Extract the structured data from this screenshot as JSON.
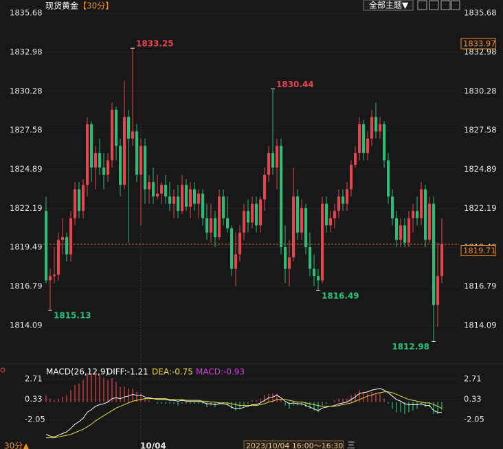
{
  "chart_data": {
    "type": "candlestick",
    "title": "现货黄金",
    "period": "【30分】",
    "theme_button": "全部主题▼",
    "up_color": "#e8434e",
    "down_color": "#25c07a",
    "ylim": [
      1811.67,
      1835.68
    ],
    "yticks": [
      1835.68,
      1832.98,
      1830.28,
      1827.58,
      1824.89,
      1822.19,
      1819.49,
      1816.79,
      1814.09
    ],
    "candles": [
      [
        1822,
        1823,
        1817,
        1817.2
      ],
      [
        1817.2,
        1818,
        1815.13,
        1817.5
      ],
      [
        1817.5,
        1819.5,
        1817,
        1817.6
      ],
      [
        1817.6,
        1820.5,
        1817.2,
        1820
      ],
      [
        1820,
        1821.5,
        1819,
        1820.2
      ],
      [
        1820.2,
        1820.5,
        1818.5,
        1819
      ],
      [
        1819,
        1822,
        1818.5,
        1821.5
      ],
      [
        1821.5,
        1824,
        1821,
        1823.5
      ],
      [
        1823.5,
        1824,
        1821.5,
        1822
      ],
      [
        1822,
        1824.2,
        1821.5,
        1823.8
      ],
      [
        1823.8,
        1828.5,
        1823,
        1828
      ],
      [
        1828,
        1828.2,
        1824,
        1825
      ],
      [
        1825,
        1826.5,
        1823.5,
        1826
      ],
      [
        1826,
        1827,
        1824.5,
        1825
      ],
      [
        1825,
        1826,
        1823.5,
        1824.5
      ],
      [
        1824.5,
        1826,
        1824,
        1825.5
      ],
      [
        1825.5,
        1829.5,
        1825,
        1829
      ],
      [
        1829,
        1829.2,
        1825.5,
        1826.5
      ],
      [
        1826.5,
        1827,
        1823,
        1823.8
      ],
      [
        1823.8,
        1831,
        1823.5,
        1828.5
      ],
      [
        1828.5,
        1829,
        1819.8,
        1827
      ],
      [
        1827,
        1833.25,
        1826.5,
        1827.5
      ],
      [
        1827.5,
        1828,
        1824,
        1824.5
      ],
      [
        1824.5,
        1827,
        1821,
        1826.5
      ],
      [
        1826.5,
        1827,
        1822.5,
        1823.5
      ],
      [
        1823.5,
        1824.5,
        1822.5,
        1824
      ],
      [
        1824,
        1825,
        1822.5,
        1823
      ],
      [
        1823,
        1824.5,
        1822.8,
        1823.2
      ],
      [
        1823.2,
        1824,
        1822.5,
        1823.8
      ],
      [
        1823.8,
        1824.5,
        1822.5,
        1823
      ],
      [
        1823,
        1824,
        1822,
        1822.5
      ],
      [
        1822.5,
        1823.5,
        1821.5,
        1823
      ],
      [
        1823,
        1823.8,
        1821.5,
        1822
      ],
      [
        1822,
        1824.5,
        1821.8,
        1823.8
      ],
      [
        1823.8,
        1824.2,
        1822,
        1822.3
      ],
      [
        1822.3,
        1824,
        1821.5,
        1823.5
      ],
      [
        1823.5,
        1824,
        1822,
        1822.5
      ],
      [
        1822.5,
        1823.5,
        1821.5,
        1823.2
      ],
      [
        1823.2,
        1823.5,
        1821,
        1821.5
      ],
      [
        1821.5,
        1822.5,
        1820,
        1820.5
      ],
      [
        1820.5,
        1822.5,
        1819.8,
        1821.5
      ],
      [
        1821.5,
        1822,
        1819.5,
        1820.2
      ],
      [
        1820.2,
        1823.5,
        1820,
        1823
      ],
      [
        1823,
        1823.5,
        1821,
        1821.5
      ],
      [
        1821.5,
        1823,
        1820.5,
        1820.8
      ],
      [
        1820.8,
        1821,
        1817.5,
        1818
      ],
      [
        1818,
        1820.5,
        1816.8,
        1819
      ],
      [
        1819,
        1821,
        1818.5,
        1820.5
      ],
      [
        1820.5,
        1822.5,
        1820,
        1822
      ],
      [
        1822,
        1822.8,
        1820.5,
        1821.2
      ],
      [
        1821.2,
        1823,
        1820.8,
        1822.5
      ],
      [
        1822.5,
        1823,
        1820.5,
        1821
      ],
      [
        1821,
        1823,
        1820.5,
        1822.8
      ],
      [
        1822.8,
        1825,
        1822,
        1824.5
      ],
      [
        1824.5,
        1826.5,
        1824,
        1826
      ],
      [
        1826,
        1830.44,
        1824.5,
        1825
      ],
      [
        1825,
        1827,
        1823.5,
        1826.5
      ],
      [
        1826.5,
        1827,
        1819,
        1819.5
      ],
      [
        1819.5,
        1821,
        1817,
        1818
      ],
      [
        1818,
        1820,
        1816.8,
        1818.8
      ],
      [
        1818.8,
        1825,
        1818.5,
        1823
      ],
      [
        1823,
        1823.5,
        1820,
        1820.5
      ],
      [
        1820.5,
        1822.8,
        1820,
        1822.2
      ],
      [
        1822.2,
        1822.5,
        1819,
        1819.5
      ],
      [
        1819.5,
        1820.5,
        1817.5,
        1818
      ],
      [
        1818,
        1819,
        1816.8,
        1817.5
      ],
      [
        1817.5,
        1818,
        1816.49,
        1817.2
      ],
      [
        1817.2,
        1823,
        1817,
        1822.5
      ],
      [
        1822.5,
        1823,
        1820.5,
        1821
      ],
      [
        1821,
        1822,
        1820.5,
        1821.5
      ],
      [
        1821.5,
        1822.5,
        1820.8,
        1822
      ],
      [
        1822,
        1823.5,
        1821.5,
        1823
      ],
      [
        1823,
        1823.5,
        1822,
        1822.5
      ],
      [
        1822.5,
        1824,
        1822,
        1823.5
      ],
      [
        1823.5,
        1825.5,
        1823,
        1825.2
      ],
      [
        1825.2,
        1826.5,
        1825,
        1826
      ],
      [
        1826,
        1828.5,
        1825.5,
        1828
      ],
      [
        1828,
        1828.3,
        1825.5,
        1826
      ],
      [
        1826,
        1827.5,
        1825.5,
        1827
      ],
      [
        1827,
        1829,
        1826.5,
        1828.5
      ],
      [
        1828.5,
        1829.5,
        1827,
        1827.5
      ],
      [
        1827.5,
        1828.5,
        1827,
        1828
      ],
      [
        1828,
        1828.2,
        1825,
        1825.5
      ],
      [
        1825.5,
        1826,
        1822.5,
        1823
      ],
      [
        1823,
        1823.5,
        1821,
        1821.5
      ],
      [
        1821.5,
        1822,
        1819.5,
        1820
      ],
      [
        1820,
        1821.5,
        1819.5,
        1821
      ],
      [
        1821,
        1821.5,
        1819.5,
        1819.8
      ],
      [
        1819.8,
        1822,
        1819.5,
        1821.5
      ],
      [
        1821.5,
        1822.5,
        1820.5,
        1822
      ],
      [
        1822,
        1823,
        1821,
        1821.5
      ],
      [
        1821.5,
        1824,
        1821,
        1823.5
      ],
      [
        1823.5,
        1823.8,
        1819.5,
        1820
      ],
      [
        1820,
        1823,
        1819.8,
        1822.5
      ],
      [
        1822.5,
        1823,
        1812.98,
        1815.5
      ],
      [
        1815.5,
        1819.8,
        1814,
        1817.5
      ],
      [
        1817.5,
        1821.5,
        1817,
        1819.71
      ]
    ],
    "high_labels": [
      1833.25,
      1830.44
    ],
    "low_labels": [
      1815.13,
      1816.49,
      1812.98
    ],
    "last_price": 1819.71,
    "price_tag": 1833.97,
    "macd": {
      "label": "MACD(26,12,9)",
      "ylim": [
        -4.79,
        3.68
      ],
      "yticks": [
        2.71,
        0.33,
        -2.05
      ],
      "diff": {
        "label": "DIFF:-1.21",
        "color": "#ffffff",
        "values": [
          -3.8,
          -4.0,
          -4.1,
          -3.9,
          -3.7,
          -3.5,
          -3.1,
          -2.6,
          -2.3,
          -1.9,
          -1.2,
          -0.9,
          -0.5,
          -0.3,
          -0.2,
          0.0,
          0.4,
          0.5,
          0.4,
          0.6,
          0.7,
          0.9,
          0.8,
          0.8,
          0.6,
          0.5,
          0.4,
          0.3,
          0.3,
          0.3,
          0.2,
          0.2,
          0.1,
          0.2,
          0.1,
          0.1,
          0.1,
          0.1,
          0.0,
          -0.2,
          -0.2,
          -0.3,
          -0.2,
          -0.2,
          -0.3,
          -0.6,
          -0.8,
          -0.8,
          -0.6,
          -0.5,
          -0.3,
          -0.3,
          -0.1,
          0.2,
          0.5,
          0.6,
          0.8,
          0.5,
          0.1,
          -0.2,
          -0.1,
          -0.2,
          -0.2,
          -0.4,
          -0.6,
          -0.8,
          -1.0,
          -0.7,
          -0.6,
          -0.5,
          -0.4,
          -0.2,
          -0.1,
          0.0,
          0.3,
          0.6,
          1.0,
          1.1,
          1.2,
          1.4,
          1.5,
          1.6,
          1.4,
          1.1,
          0.7,
          0.3,
          0.1,
          -0.2,
          -0.3,
          -0.3,
          -0.3,
          -0.2,
          -0.4,
          -0.4,
          -1.0,
          -1.2,
          -1.21
        ]
      },
      "dea": {
        "label": "DEA:-0.75",
        "color": "#e8dd3a",
        "values": [
          -4.2,
          -4.2,
          -4.2,
          -4.1,
          -4.0,
          -3.9,
          -3.8,
          -3.6,
          -3.4,
          -3.2,
          -2.9,
          -2.6,
          -2.2,
          -1.9,
          -1.6,
          -1.3,
          -1.0,
          -0.7,
          -0.5,
          -0.3,
          -0.1,
          0.1,
          0.2,
          0.3,
          0.4,
          0.4,
          0.4,
          0.4,
          0.4,
          0.4,
          0.3,
          0.3,
          0.3,
          0.3,
          0.2,
          0.2,
          0.2,
          0.2,
          0.1,
          0.1,
          0.0,
          0.0,
          -0.1,
          -0.1,
          -0.1,
          -0.2,
          -0.3,
          -0.4,
          -0.4,
          -0.4,
          -0.4,
          -0.4,
          -0.3,
          -0.2,
          0.0,
          0.1,
          0.3,
          0.3,
          0.3,
          0.2,
          0.1,
          0.0,
          0.0,
          -0.1,
          -0.2,
          -0.3,
          -0.4,
          -0.5,
          -0.5,
          -0.5,
          -0.5,
          -0.4,
          -0.3,
          -0.2,
          -0.1,
          0.1,
          0.3,
          0.5,
          0.7,
          0.8,
          1.0,
          1.1,
          1.2,
          1.2,
          1.1,
          0.9,
          0.7,
          0.5,
          0.3,
          0.2,
          0.1,
          0.0,
          -0.1,
          -0.1,
          -0.3,
          -0.5,
          -0.75
        ]
      },
      "hist": {
        "label": "MACD:-0.93",
        "color": "#d23ee0",
        "values": [
          0.8,
          0.4,
          0.2,
          0.4,
          0.6,
          0.8,
          1.4,
          2.0,
          2.2,
          2.6,
          3.4,
          3.4,
          3.4,
          3.2,
          2.8,
          2.6,
          2.8,
          2.4,
          1.8,
          1.8,
          1.6,
          1.6,
          1.2,
          1.0,
          0.4,
          0.2,
          0,
          -0.2,
          -0.2,
          -0.2,
          -0.2,
          -0.2,
          -0.4,
          -0.2,
          -0.2,
          -0.2,
          -0.2,
          -0.2,
          -0.2,
          -0.6,
          -0.4,
          -0.6,
          -0.2,
          -0.2,
          -0.4,
          -0.8,
          -1.0,
          -0.8,
          -0.4,
          -0.2,
          0.2,
          0.2,
          0.4,
          0.8,
          1.0,
          1.0,
          1.0,
          0.4,
          -0.4,
          -0.8,
          -0.4,
          -0.4,
          -0.4,
          -0.6,
          -0.8,
          -1.0,
          -1.2,
          -0.4,
          -0.2,
          0,
          0.2,
          0.4,
          0.4,
          0.4,
          0.8,
          1.0,
          1.4,
          1.2,
          1.0,
          1.2,
          1.0,
          1.0,
          0.4,
          -0.2,
          -0.8,
          -1.2,
          -1.2,
          -1.4,
          -1.2,
          -1.0,
          -0.8,
          -0.4,
          -0.6,
          -0.6,
          -1.4,
          -1.4,
          -0.93
        ]
      }
    },
    "period_switch": "30分▲",
    "date_label": "10/04",
    "cursor_time": "2023/10/04 16:00～16:30",
    "menu_icon": "三"
  }
}
